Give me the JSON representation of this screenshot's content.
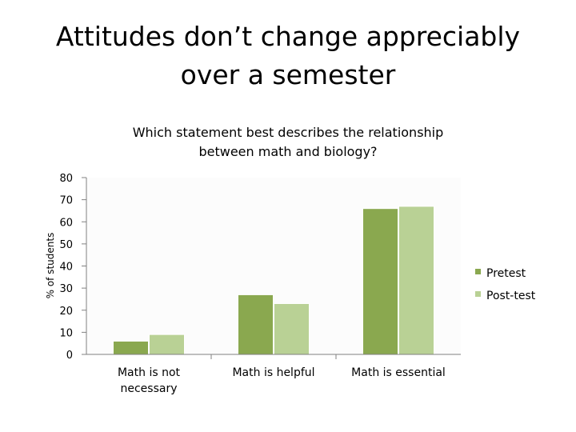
{
  "slide": {
    "title": "Attitudes don’t change appreciably\nover a semester"
  },
  "chart_data": {
    "type": "bar",
    "title": "Which statement best describes the relationship\nbetween math and biology?",
    "xlabel": "",
    "ylabel": "% of students",
    "categories": [
      "Math is not\nnecessary",
      "Math is helpful",
      "Math is essential"
    ],
    "series": [
      {
        "name": "Pretest",
        "values": [
          6,
          27,
          66
        ],
        "color": "#8aa84f"
      },
      {
        "name": "Post-test",
        "values": [
          9,
          23,
          67
        ],
        "color": "#b9d195"
      }
    ],
    "ylim": [
      0,
      80
    ],
    "yticks": [
      0,
      10,
      20,
      30,
      40,
      50,
      60,
      70,
      80
    ],
    "grid": false,
    "legend": "right"
  }
}
